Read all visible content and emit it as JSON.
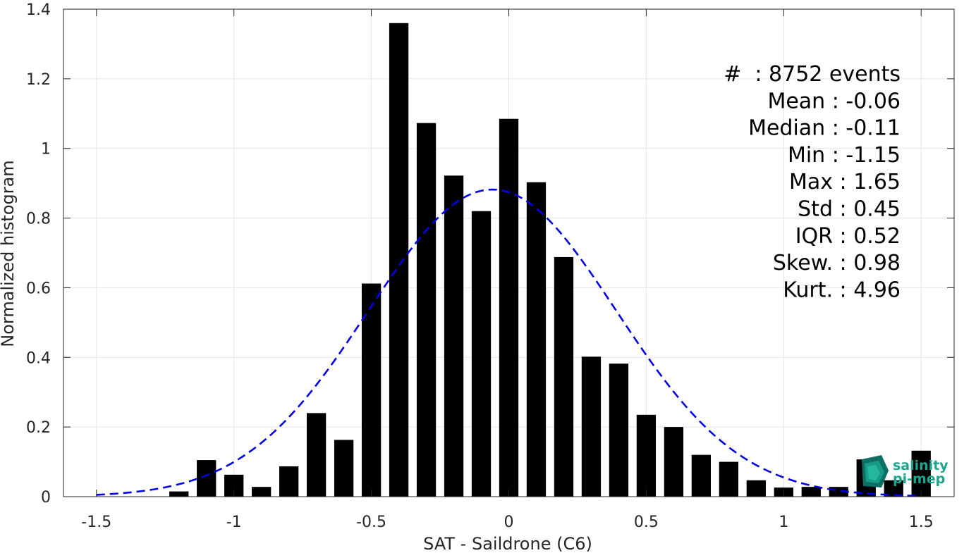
{
  "chart_data": {
    "type": "bar",
    "xlabel": "SAT - Saildrone (C6)",
    "ylabel": "Normalized histogram",
    "xlim": [
      -1.62,
      1.62
    ],
    "ylim": [
      0,
      1.4
    ],
    "xticks": [
      -1.5,
      -1,
      -0.5,
      0,
      0.5,
      1,
      1.5
    ],
    "xtick_labels": [
      "-1.5",
      "-1",
      "-0.5",
      "0",
      "0.5",
      "1",
      "1.5"
    ],
    "yticks": [
      0,
      0.2,
      0.4,
      0.6,
      0.8,
      1,
      1.2,
      1.4
    ],
    "ytick_labels": [
      "0",
      "0.2",
      "0.4",
      "0.6",
      "0.8",
      "1",
      "1.2",
      "1.4"
    ],
    "grid": true,
    "bar_width": 0.07,
    "bar_color": "#000000",
    "bars": {
      "x": [
        -1.2,
        -1.1,
        -1.0,
        -0.9,
        -0.8,
        -0.7,
        -0.6,
        -0.5,
        -0.4,
        -0.3,
        -0.2,
        -0.1,
        0.0,
        0.1,
        0.2,
        0.3,
        0.4,
        0.5,
        0.6,
        0.7,
        0.8,
        0.9,
        1.0,
        1.1,
        1.2,
        1.3,
        1.4,
        1.5
      ],
      "values": [
        0.015,
        0.105,
        0.063,
        0.028,
        0.087,
        0.24,
        0.163,
        0.612,
        1.36,
        1.073,
        0.922,
        0.82,
        1.085,
        0.903,
        0.688,
        0.402,
        0.382,
        0.235,
        0.2,
        0.12,
        0.1,
        0.047,
        0.026,
        0.028,
        0.028,
        0.107,
        0.047,
        0.132
      ]
    },
    "fit_curve": {
      "type": "gaussian",
      "style": "dashed",
      "color": "#0000e6",
      "peak": 0.882,
      "mean": -0.06,
      "std": 0.45,
      "x_range": [
        -1.5,
        1.5
      ]
    },
    "annotation_lines": [
      "#  : 8752 events",
      "Mean : -0.06",
      "Median : -0.11",
      "Min : -1.15",
      "Max : 1.65",
      "Std : 0.45",
      "IQR : 0.52",
      "Skew. : 0.98",
      "Kurt. : 4.96"
    ]
  },
  "logo": {
    "line1": "salinity",
    "line2": "pi-mep",
    "color": "#1aa58f"
  }
}
